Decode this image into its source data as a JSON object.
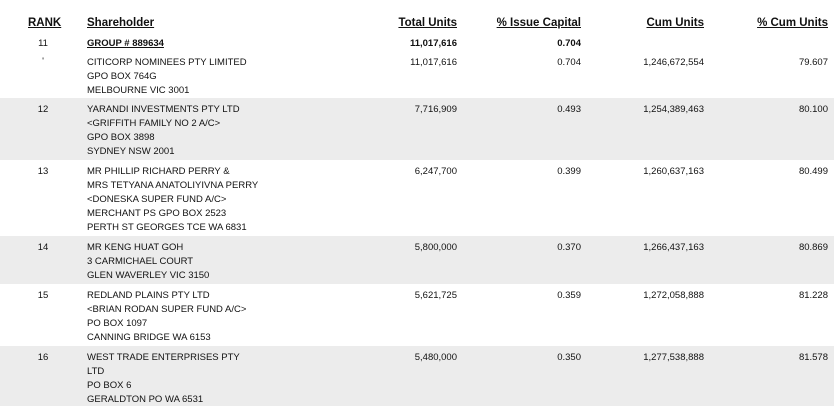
{
  "headers": {
    "rank": "RANK",
    "shareholder": "Shareholder",
    "total_units": "Total Units",
    "issue_capital": "% Issue Capital",
    "cum_units": "Cum Units",
    "cum_pct": "% Cum Units"
  },
  "group": {
    "rank": "11",
    "name": "GROUP # 889634",
    "total_units": "11,017,616",
    "issue_capital": "0.704"
  },
  "rows": [
    {
      "rank": "'",
      "lines": [
        "CITICORP NOMINEES PTY LIMITED",
        "GPO BOX 764G",
        "MELBOURNE VIC 3001"
      ],
      "total_units": "11,017,616",
      "issue_capital": "0.704",
      "cum_units": "1,246,672,554",
      "cum_pct": "79.607"
    },
    {
      "rank": "12",
      "lines": [
        "YARANDI INVESTMENTS PTY LTD",
        "<GRIFFITH FAMILY NO 2 A/C>",
        "GPO BOX 3898",
        "SYDNEY NSW 2001"
      ],
      "total_units": "7,716,909",
      "issue_capital": "0.493",
      "cum_units": "1,254,389,463",
      "cum_pct": "80.100"
    },
    {
      "rank": "13",
      "lines": [
        "MR PHILLIP RICHARD PERRY &",
        "MRS TETYANA ANATOLIYIVNA PERRY",
        "<DONESKA SUPER FUND A/C>",
        "MERCHANT PS GPO BOX 2523",
        "PERTH ST GEORGES TCE WA 6831"
      ],
      "total_units": "6,247,700",
      "issue_capital": "0.399",
      "cum_units": "1,260,637,163",
      "cum_pct": "80.499"
    },
    {
      "rank": "14",
      "lines": [
        "MR KENG HUAT GOH",
        "3 CARMICHAEL COURT",
        "GLEN WAVERLEY VIC 3150"
      ],
      "total_units": "5,800,000",
      "issue_capital": "0.370",
      "cum_units": "1,266,437,163",
      "cum_pct": "80.869"
    },
    {
      "rank": "15",
      "lines": [
        "REDLAND PLAINS PTY LTD",
        "<BRIAN RODAN SUPER FUND A/C>",
        "PO BOX 1097",
        "CANNING BRIDGE WA 6153"
      ],
      "total_units": "5,621,725",
      "issue_capital": "0.359",
      "cum_units": "1,272,058,888",
      "cum_pct": "81.228"
    },
    {
      "rank": "16",
      "lines": [
        "WEST TRADE ENTERPRISES PTY",
        "LTD",
        "PO BOX 6",
        "GERALDTON PO WA 6531"
      ],
      "total_units": "5,480,000",
      "issue_capital": "0.350",
      "cum_units": "1,277,538,888",
      "cum_pct": "81.578"
    }
  ]
}
